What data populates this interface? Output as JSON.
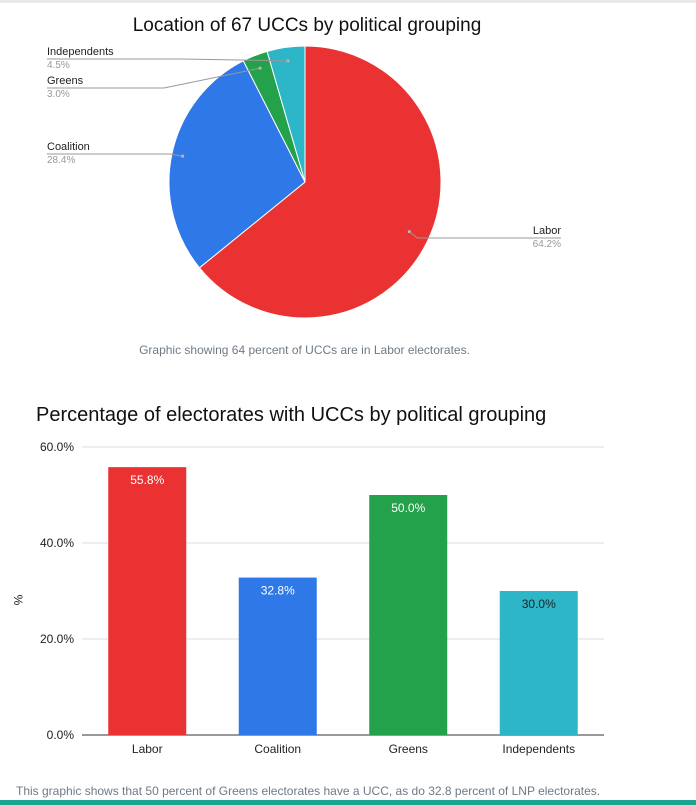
{
  "chart_data": [
    {
      "type": "pie",
      "title": "Location of 67 UCCs by political grouping",
      "caption": "Graphic showing 64 percent of UCCs are in Labor electorates.",
      "slices": [
        {
          "name": "Labor",
          "pct_label": "64.2%",
          "value": 64.2,
          "color": "#ea3232"
        },
        {
          "name": "Coalition",
          "pct_label": "28.4%",
          "value": 28.4,
          "color": "#2f78e8"
        },
        {
          "name": "Greens",
          "pct_label": "3.0%",
          "value": 3.0,
          "color": "#23a24b"
        },
        {
          "name": "Independents",
          "pct_label": "4.5%",
          "value": 4.5,
          "color": "#2db6c7"
        }
      ]
    },
    {
      "type": "bar",
      "title": "Percentage of electorates with UCCs by political grouping",
      "ylabel": "%",
      "ylim": [
        0,
        60
      ],
      "y_ticks": [
        "0.0%",
        "20.0%",
        "40.0%",
        "60.0%"
      ],
      "y_tick_values": [
        0,
        20,
        40,
        60
      ],
      "categories": [
        "Labor",
        "Coalition",
        "Greens",
        "Independents"
      ],
      "values": [
        55.8,
        32.8,
        50.0,
        30.0
      ],
      "value_labels": [
        "55.8%",
        "32.8%",
        "50.0%",
        "30.0%"
      ],
      "colors": [
        "#ea3232",
        "#2f78e8",
        "#23a24b",
        "#2db6c7"
      ],
      "label_colors": [
        "#ffffff",
        "#ffffff",
        "#ffffff",
        "#222222"
      ],
      "caption": "This graphic shows that 50 percent of Greens electorates have a UCC, as do 32.8 percent of LNP electorates."
    }
  ]
}
